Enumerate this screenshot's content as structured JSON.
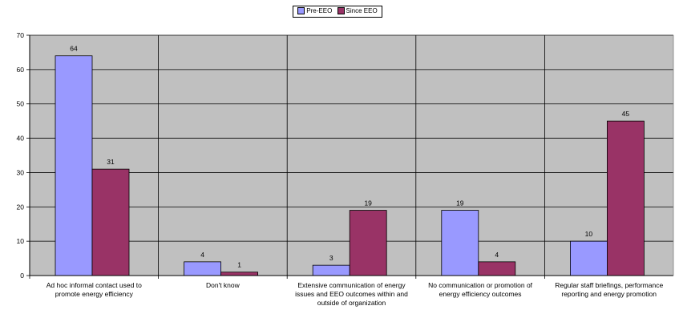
{
  "chart_data": {
    "type": "bar",
    "categories": [
      "Ad hoc informal contact used to promote energy efficiency",
      "Don't know",
      "Extensive communication of energy issues and EEO outcomes within and outside of organization",
      "No communication or promotion of energy efficiency outcomes",
      "Regular staff briefings, performance reporting and energy promotion"
    ],
    "series": [
      {
        "name": "Pre-EEO",
        "color": "#9999ff",
        "values": [
          64,
          4,
          3,
          19,
          10
        ]
      },
      {
        "name": "Since EEO",
        "color": "#993366",
        "values": [
          31,
          1,
          19,
          4,
          45
        ]
      }
    ],
    "ylim": [
      0,
      70
    ],
    "yticks": [
      0,
      10,
      20,
      30,
      40,
      50,
      60,
      70
    ],
    "legend_position": "top-center",
    "grid": true,
    "plot_background": "#c0c0c0"
  }
}
